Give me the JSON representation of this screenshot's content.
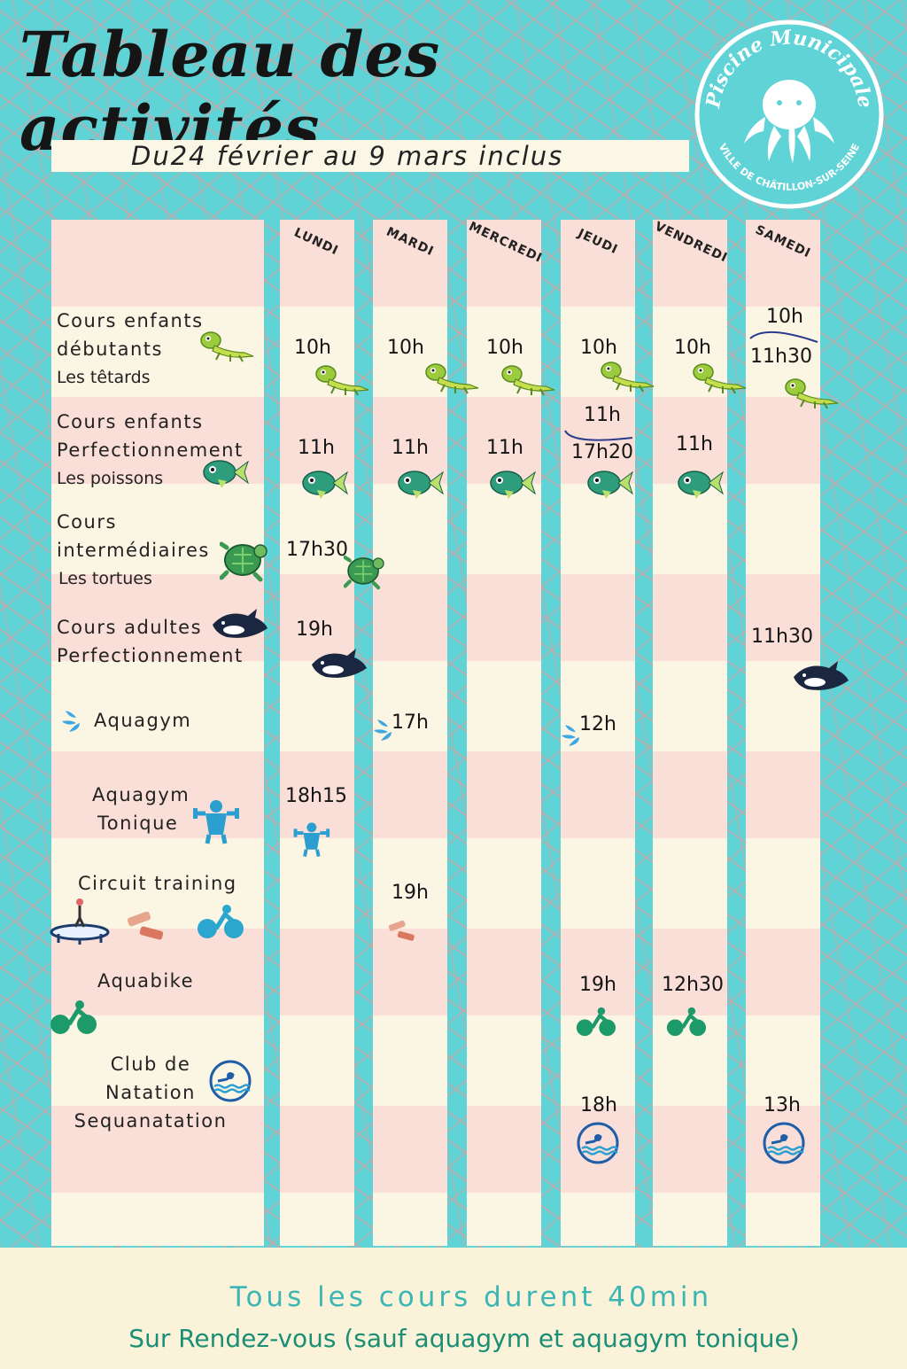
{
  "title": "Tableau des activités",
  "subtitle": "Du24 février au 9 mars inclus",
  "logo": {
    "top_text": "Piscine Municipale",
    "bottom_text": "VILLE DE CHÂTILLON-SUR-SEINE",
    "icon": "octopus-icon"
  },
  "days": [
    "LUNDI",
    "MARDI",
    "MERCREDI",
    "JEUDI",
    "VENDREDI",
    "SAMEDI"
  ],
  "activities": [
    {
      "line1": "Cours enfants",
      "line2": "débutants",
      "line3": "Les têtards",
      "icon": "lizard-icon"
    },
    {
      "line1": "Cours enfants",
      "line2": "Perfectionnement",
      "line3": "Les poissons",
      "icon": "fish-icon"
    },
    {
      "line1": "Cours",
      "line2": "intermédiaires",
      "line3": "Les tortues",
      "icon": "turtle-icon"
    },
    {
      "line1": "Cours adultes",
      "line2": "Perfectionnement",
      "icon": "orca-icon"
    },
    {
      "line1": "Aquagym",
      "icon": "water-splash-icon"
    },
    {
      "line1": "Aquagym",
      "line2": "Tonique",
      "icon": "dumbbell-man-icon"
    },
    {
      "line1": "Circuit training",
      "icon": "trampoline-icon"
    },
    {
      "line1": "Aquabike",
      "icon": "bike-icon"
    },
    {
      "line1": "Club de",
      "line2": "Natation",
      "line3": "Sequanatation",
      "icon": "swimmer-icon"
    }
  ],
  "schedule": {
    "tetards": {
      "lundi": "10h",
      "mardi": "10h",
      "mercredi": "10h",
      "jeudi": "10h",
      "vendredi": "10h",
      "samedi_1": "10h",
      "samedi_2": "11h30"
    },
    "poissons": {
      "lundi": "11h",
      "mardi": "11h",
      "mercredi": "11h",
      "jeudi_1": "11h",
      "jeudi_2": "17h20",
      "vendredi": "11h"
    },
    "tortues": {
      "lundi": "17h30"
    },
    "adultes": {
      "lundi": "19h",
      "samedi": "11h30"
    },
    "aquagym": {
      "mardi": "17h",
      "jeudi": "12h"
    },
    "tonique": {
      "lundi": "18h15"
    },
    "circuit": {
      "mardi": "19h"
    },
    "aquabike": {
      "jeudi": "19h",
      "vendredi": "12h30"
    },
    "club": {
      "jeudi": "18h",
      "samedi": "13h"
    }
  },
  "footer": {
    "line1": "Tous les cours durent 40min",
    "line2": "Sur Rendez-vous (sauf aquagym et aquagym tonique)"
  },
  "colors": {
    "background": "#5fd3d6",
    "pattern": "#f0a0a0",
    "row_pink": "#f9dfd7",
    "row_cream": "#fbf5e4",
    "footer_text": "#3bb6b4"
  }
}
